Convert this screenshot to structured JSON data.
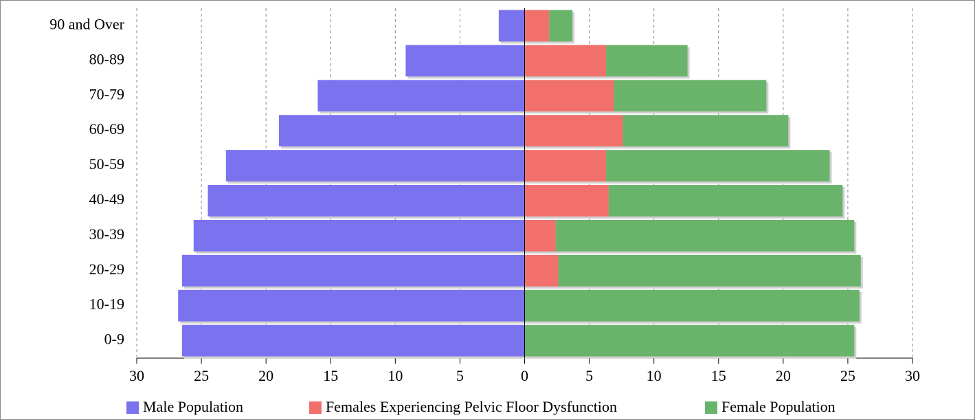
{
  "chart_data": {
    "type": "bar",
    "orientation": "horizontal",
    "stacked": true,
    "categories": [
      "90 and Over",
      "80-89",
      "70-79",
      "60-69",
      "50-59",
      "40-49",
      "30-39",
      "20-29",
      "10-19",
      "0-9"
    ],
    "series": [
      {
        "name": "Male Population",
        "color": "#7b72f0",
        "values": [
          -2.0,
          -9.2,
          -16.0,
          -19.0,
          -23.1,
          -24.5,
          -25.6,
          -26.5,
          -26.8,
          -26.5
        ]
      },
      {
        "name": "Females Experiencing Pelvic Floor Dysfunction",
        "color": "#f1706b",
        "values": [
          1.9,
          6.3,
          6.9,
          7.6,
          6.3,
          6.5,
          2.4,
          2.6,
          0,
          0
        ]
      },
      {
        "name": "Female Population",
        "color": "#6ab36b",
        "values": [
          1.8,
          6.3,
          11.8,
          12.8,
          17.3,
          18.1,
          23.1,
          23.4,
          25.9,
          25.5
        ]
      }
    ],
    "xlim": [
      -30,
      30
    ],
    "xticks": [
      {
        "value": -30,
        "label": "30"
      },
      {
        "value": -25,
        "label": "25"
      },
      {
        "value": -20,
        "label": "20"
      },
      {
        "value": -15,
        "label": "15"
      },
      {
        "value": -10,
        "label": "10"
      },
      {
        "value": -5,
        "label": "5"
      },
      0,
      5,
      10,
      15,
      20,
      25,
      30
    ],
    "grid": true,
    "legend": "bottom"
  }
}
